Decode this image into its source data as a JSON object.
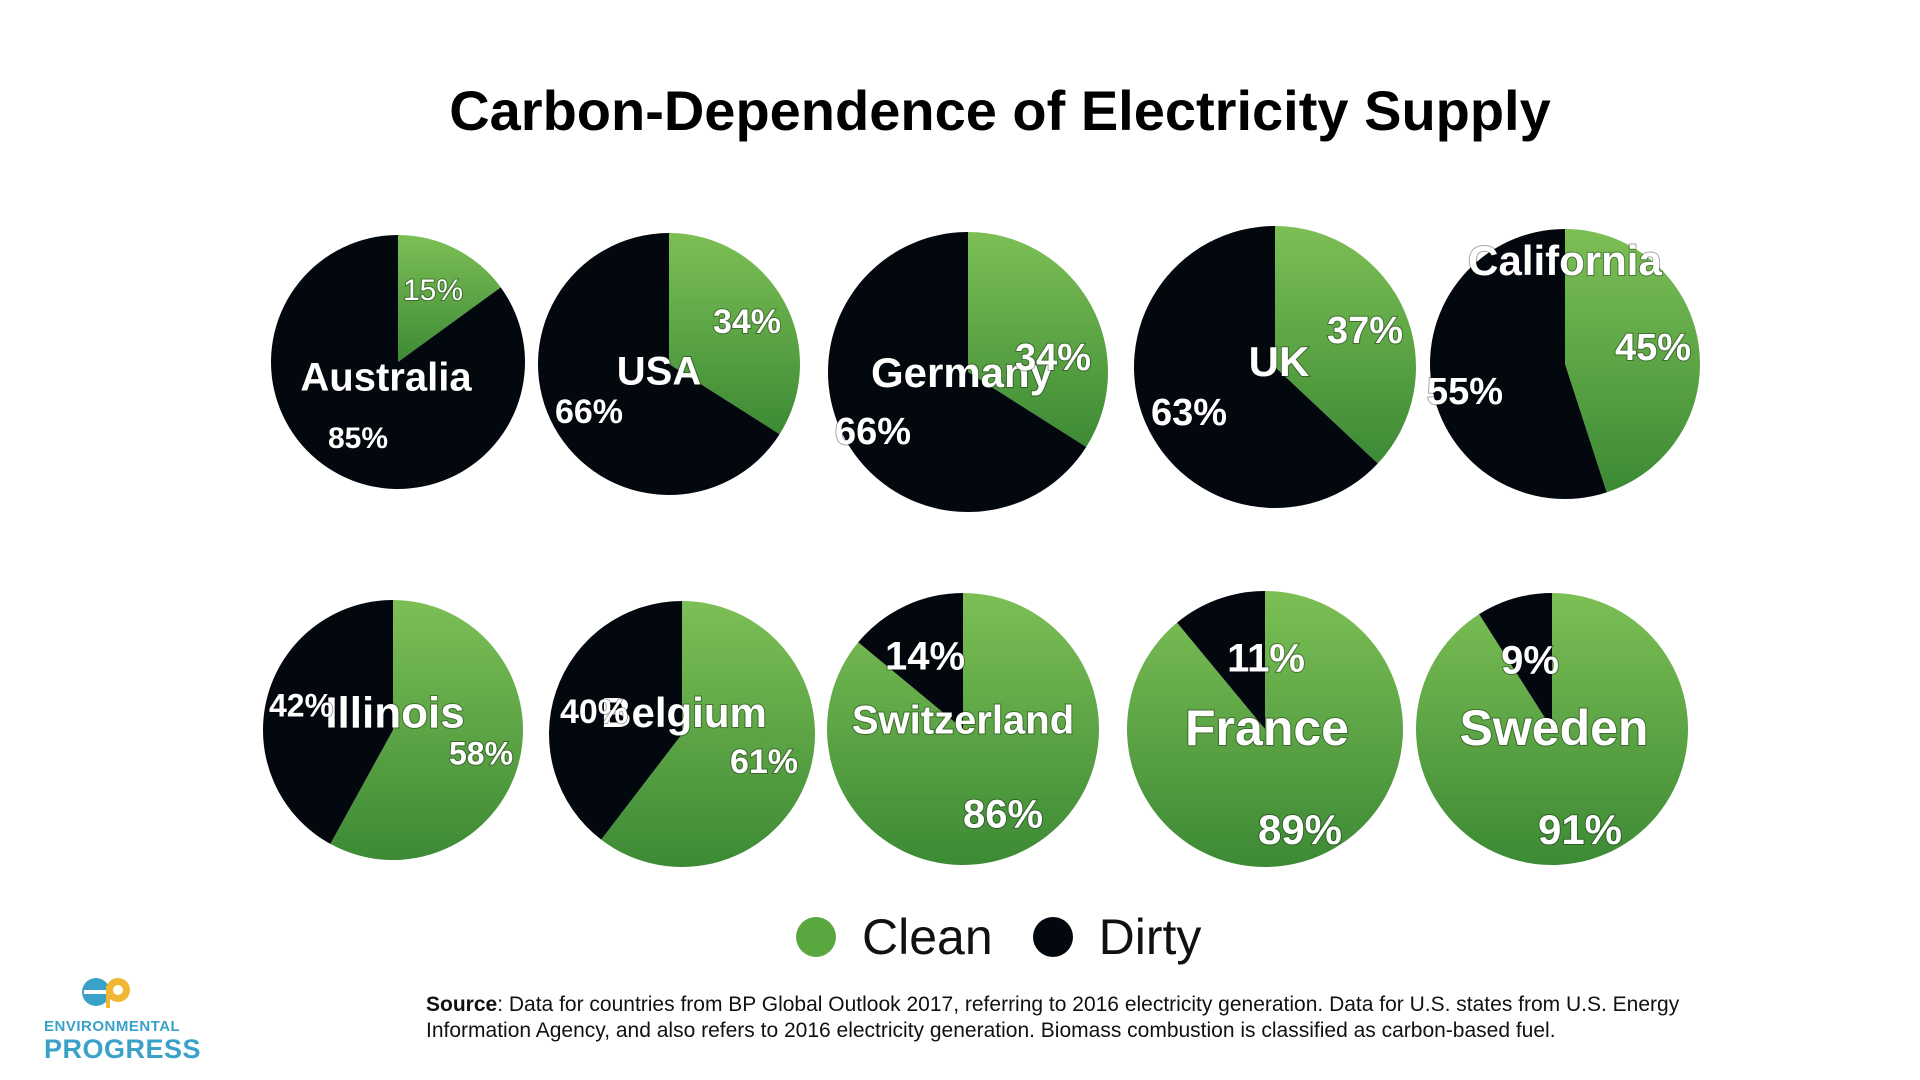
{
  "title": "Carbon-Dependence of Electricity Supply",
  "colors": {
    "clean": "#5aa63f",
    "clean_light": "#7cbf55",
    "clean_dark": "#3d8a35",
    "dirty": "#03080f"
  },
  "chart_data": {
    "type": "pie",
    "title": "Carbon-Dependence of Electricity Supply",
    "legend": {
      "placement": "bottom-center",
      "entries": [
        "Clean",
        "Dirty"
      ]
    },
    "series_names": [
      "Clean",
      "Dirty"
    ],
    "pies": [
      {
        "name": "Australia",
        "clean": 15,
        "dirty": 85,
        "clean_label": "15%",
        "dirty_label": "85%"
      },
      {
        "name": "USA",
        "clean": 34,
        "dirty": 66,
        "clean_label": "34%",
        "dirty_label": "66%"
      },
      {
        "name": "Germany",
        "clean": 34,
        "dirty": 66,
        "clean_label": "34%",
        "dirty_label": "66%"
      },
      {
        "name": "UK",
        "clean": 37,
        "dirty": 63,
        "clean_label": "37%",
        "dirty_label": "63%"
      },
      {
        "name": "California",
        "clean": 45,
        "dirty": 55,
        "clean_label": "45%",
        "dirty_label": "55%"
      },
      {
        "name": "Illinois",
        "clean": 58,
        "dirty": 42,
        "clean_label": "58%",
        "dirty_label": "42%"
      },
      {
        "name": "Belgium",
        "clean": 61,
        "dirty": 40,
        "clean_label": "61%",
        "dirty_label": "40%"
      },
      {
        "name": "Switzerland",
        "clean": 86,
        "dirty": 14,
        "clean_label": "86%",
        "dirty_label": "14%"
      },
      {
        "name": "France",
        "clean": 89,
        "dirty": 11,
        "clean_label": "89%",
        "dirty_label": "11%"
      },
      {
        "name": "Sweden",
        "clean": 91,
        "dirty": 9,
        "clean_label": "91%",
        "dirty_label": "9%"
      }
    ]
  },
  "legend": {
    "clean_label": "Clean",
    "dirty_label": "Dirty"
  },
  "source": {
    "label": "Source",
    "text": ": Data for countries from BP Global Outlook 2017, referring to 2016 electricity generation. Data for U.S. states from U.S. Energy Information Agency, and also refers to 2016 electricity generation. Biomass combustion  is classified as carbon-based fuel."
  },
  "logo": {
    "line1": "ENVIRONMENTAL",
    "line2": "PROGRESS",
    "mark_text": "ep"
  }
}
